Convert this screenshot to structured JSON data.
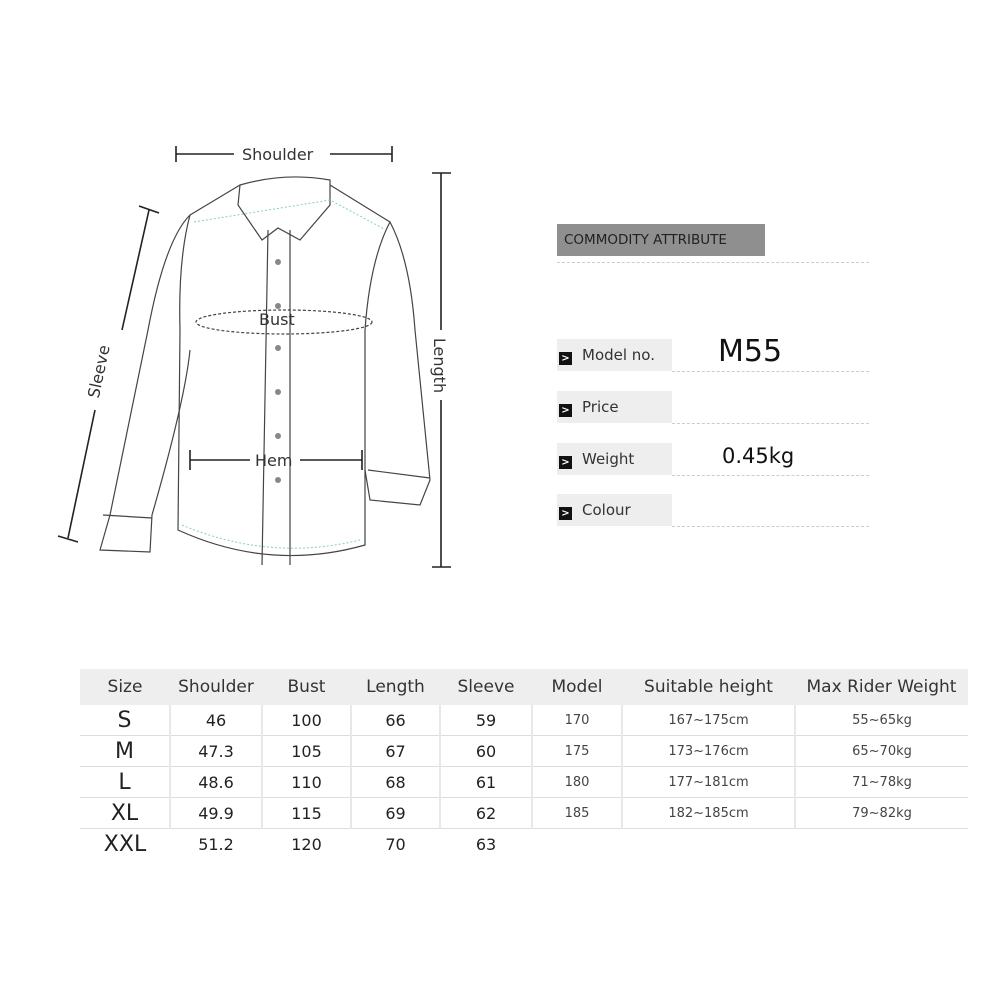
{
  "diagram": {
    "shoulder": "Shoulder",
    "bust": "Bust",
    "hem": "Hem",
    "sleeve": "Sleeve",
    "length": "Length"
  },
  "attributes": {
    "heading": "COMMODITY ATTRIBUTE",
    "rows": [
      {
        "label": "Model no.",
        "value": "M55"
      },
      {
        "label": "Price",
        "value": ""
      },
      {
        "label": "Weight",
        "value": "0.45kg"
      },
      {
        "label": "Colour",
        "value": ""
      }
    ]
  },
  "size_table": {
    "headers": [
      "Size",
      "Shoulder",
      "Bust",
      "Length",
      "Sleeve",
      "Model",
      "Suitable height",
      "Max Rider Weight"
    ],
    "rows": [
      [
        "S",
        "46",
        "100",
        "66",
        "59",
        "170",
        "167~175cm",
        "55~65kg"
      ],
      [
        "M",
        "47.3",
        "105",
        "67",
        "60",
        "175",
        "173~176cm",
        "65~70kg"
      ],
      [
        "L",
        "48.6",
        "110",
        "68",
        "61",
        "180",
        "177~181cm",
        "71~78kg"
      ],
      [
        "XL",
        "49.9",
        "115",
        "69",
        "62",
        "185",
        "182~185cm",
        "79~82kg"
      ],
      [
        "XXL",
        "51.2",
        "120",
        "70",
        "63",
        "",
        "",
        ""
      ]
    ]
  }
}
